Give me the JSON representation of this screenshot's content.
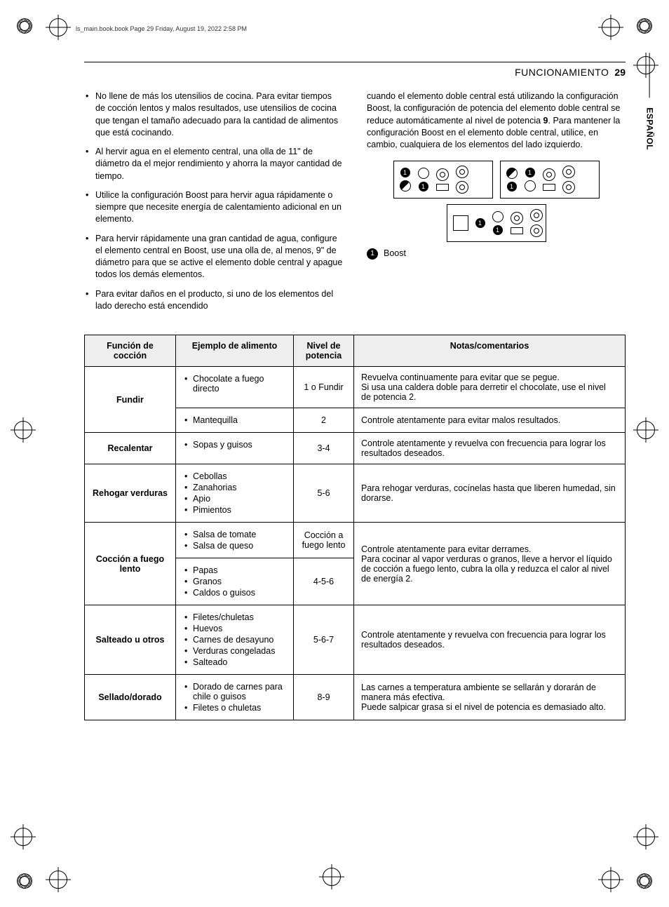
{
  "print_meta": "ls_main.book.book  Page 29  Friday, August 19, 2022  2:58 PM",
  "header": {
    "section": "FUNCIONAMIENTO",
    "page": "29"
  },
  "language_tab": "ESPAÑOL",
  "left_bullets": [
    "No llene de más los utensilios de cocina. Para evitar tiempos de cocción lentos y malos resultados, use utensilios de cocina que tengan el tamaño adecuado para la cantidad de alimentos que está cocinando.",
    "Al hervir agua en el elemento central, una olla de 11\" de diámetro da el mejor rendimiento y ahorra la mayor cantidad de tiempo.",
    "Utilice la configuración Boost para hervir agua rápidamente o siempre que necesite energía de calentamiento adicional en un elemento.",
    "Para hervir rápidamente una gran cantidad de agua, configure el elemento central en Boost, use una olla de, al menos, 9\" de diámetro para que se active el elemento doble central y apague todos los demás elementos.",
    "Para evitar daños en el producto, si uno de los elementos del lado derecho está encendido"
  ],
  "right_intro_a": "cuando el elemento doble central está utilizando la configuración Boost, la configuración de potencia del elemento doble central se reduce automáticamente al nivel de potencia ",
  "right_intro_bold": "9",
  "right_intro_b": ". Para mantener la configuración Boost en el elemento doble central, utilice, en cambio, cualquiera de los elementos del lado izquierdo.",
  "legend": {
    "num": "1",
    "label": "Boost"
  },
  "table": {
    "headers": [
      "Función de cocción",
      "Ejemplo de alimento",
      "Nivel de potencia",
      "Notas/comentarios"
    ],
    "rows": [
      {
        "func": "Fundir",
        "func_rowspan": 2,
        "foods": [
          "Chocolate a fuego directo"
        ],
        "power": "1 o Fundir",
        "notes": "Revuelva continuamente para evitar que se pegue.\nSi usa una caldera doble para derretir el chocolate, use el nivel de potencia 2."
      },
      {
        "foods": [
          "Mantequilla"
        ],
        "power": "2",
        "notes": "Controle atentamente para evitar malos resultados."
      },
      {
        "func": "Recalentar",
        "foods": [
          "Sopas y guisos"
        ],
        "power": "3-4",
        "notes": "Controle atentamente y revuelva con frecuencia para lograr los resultados deseados."
      },
      {
        "func": "Rehogar verduras",
        "foods": [
          "Cebollas",
          "Zanahorias",
          "Apio",
          "Pimientos"
        ],
        "power": "5-6",
        "notes": "Para rehogar verduras, cocínelas hasta que liberen humedad, sin dorarse."
      },
      {
        "func": "Cocción a fuego lento",
        "func_rowspan": 2,
        "foods": [
          "Salsa de tomate",
          "Salsa de queso"
        ],
        "power": "Cocción a fuego lento",
        "notes": "Controle atentamente para evitar derrames.\nPara cocinar al vapor verduras o granos, lleve a hervor el líquido de cocción a fuego lento, cubra la olla y reduzca el calor al nivel de energía 2.",
        "notes_rowspan": 2
      },
      {
        "foods": [
          "Papas",
          "Granos",
          "Caldos o guisos"
        ],
        "power": "4-5-6"
      },
      {
        "func": "Salteado u otros",
        "foods": [
          "Filetes/chuletas",
          "Huevos",
          "Carnes de desayuno",
          "Verduras congeladas",
          "Salteado"
        ],
        "power": "5-6-7",
        "notes": "Controle atentamente y revuelva con frecuencia para lograr los resultados deseados."
      },
      {
        "func": "Sellado/dorado",
        "foods": [
          "Dorado de carnes para chile o guisos",
          "Filetes o chuletas"
        ],
        "power": "8-9",
        "notes": "Las carnes a temperatura ambiente se sellarán y dorarán de manera más efectiva.\nPuede salpicar grasa si el nivel de potencia es demasiado alto."
      }
    ]
  }
}
